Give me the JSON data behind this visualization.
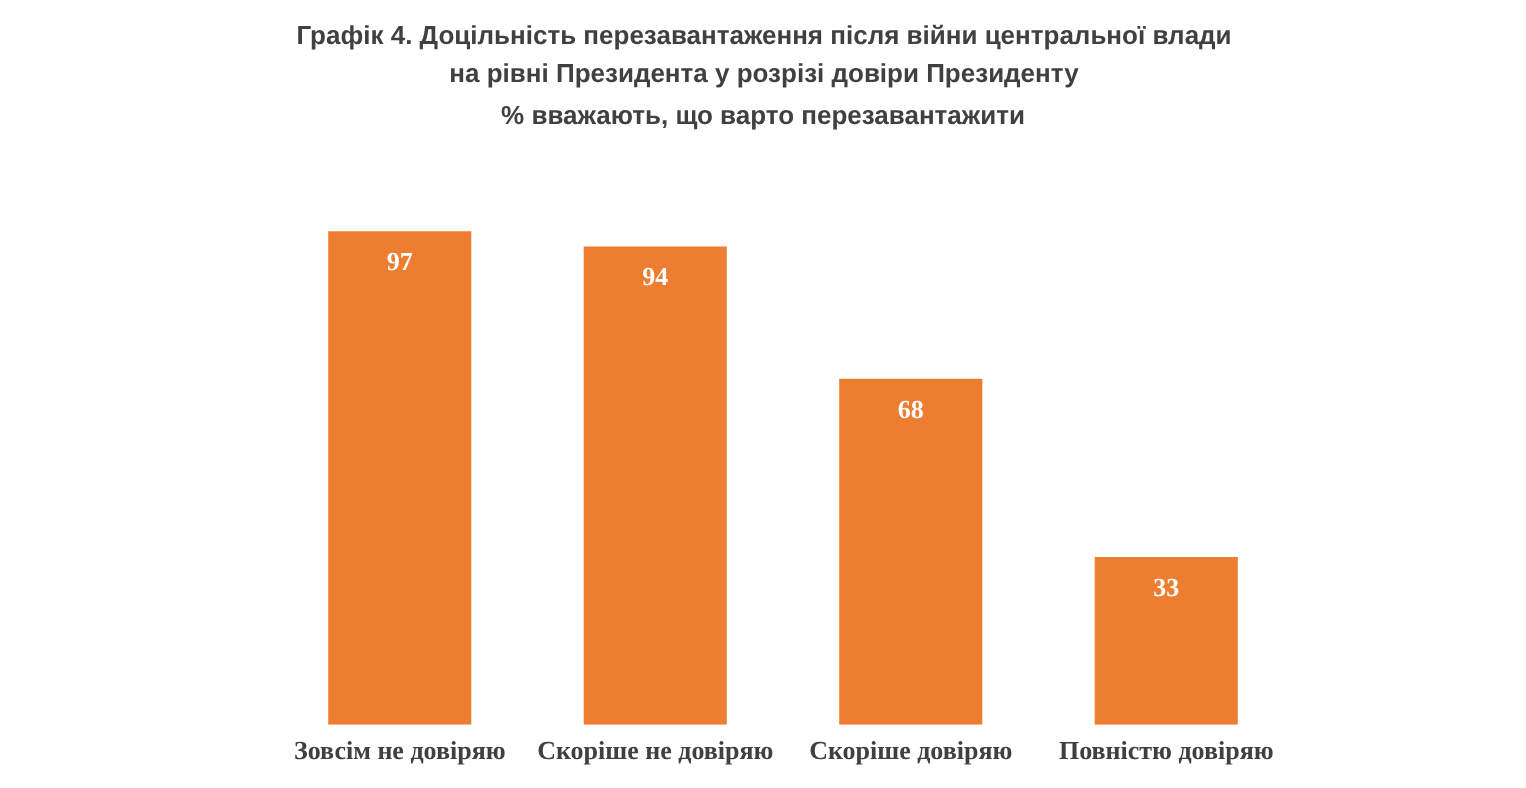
{
  "chart_data": {
    "type": "bar",
    "title": "Графік 4. Доцільність перезавантаження після війни центральної влади на рівні Президента у розрізі довіри Президенту",
    "subtitle": "% вважають, що варто перезавантажити",
    "categories": [
      "Зовсім не довіряю",
      "Скоріше не довіряю",
      "Скоріше довіряю",
      "Повністю довіряю"
    ],
    "values": [
      97,
      94,
      68,
      33
    ],
    "color": "#ed7d31",
    "data_labels": true,
    "grid": false,
    "legend": false,
    "tick_labels": "x"
  }
}
